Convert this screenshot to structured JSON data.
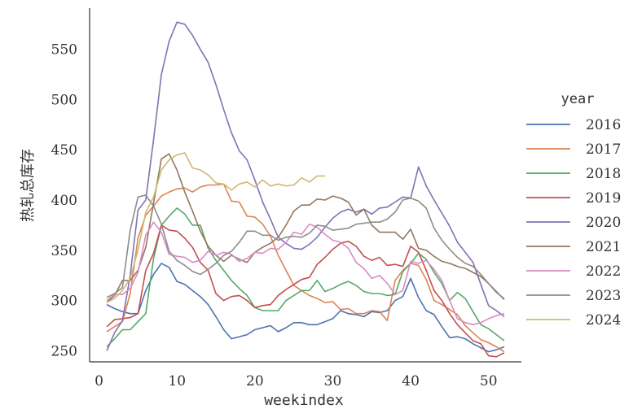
{
  "chart_data": {
    "type": "line",
    "title": "",
    "xlabel": "weekindex",
    "ylabel": "热轧总库存",
    "xlim": [
      -1,
      54
    ],
    "ylim": [
      239,
      591
    ],
    "xticks": [
      0,
      10,
      20,
      30,
      40,
      50
    ],
    "yticks": [
      250,
      300,
      350,
      400,
      450,
      500,
      550
    ],
    "grid": false,
    "legend_title": "year",
    "legend_position": "right",
    "series": [
      {
        "name": "2016",
        "color": "#4c72b0",
        "x": [
          1,
          2,
          3,
          4,
          5,
          6,
          7,
          8,
          9,
          10,
          11,
          12,
          13,
          14,
          15,
          16,
          17,
          18,
          19,
          20,
          21,
          22,
          23,
          24,
          25,
          26,
          27,
          28,
          29,
          30,
          31,
          32,
          33,
          34,
          35,
          36,
          37,
          38,
          39,
          40,
          41,
          42,
          43,
          44,
          45,
          46,
          47,
          48,
          49,
          50,
          51,
          52
        ],
        "y": [
          296,
          292,
          289,
          287,
          287,
          310,
          326,
          337,
          333,
          319,
          316,
          310,
          304,
          296,
          284,
          271,
          262,
          264,
          266,
          271,
          273,
          275,
          269,
          273,
          278,
          278,
          276,
          276,
          279,
          282,
          290,
          287,
          286,
          284,
          289,
          288,
          290,
          300,
          304,
          322,
          303,
          290,
          286,
          274,
          263,
          264,
          262,
          257,
          253,
          249,
          251,
          254
        ]
      },
      {
        "name": "2017",
        "color": "#dd8452",
        "x": [
          1,
          2,
          3,
          4,
          5,
          6,
          7,
          8,
          9,
          10,
          11,
          12,
          13,
          14,
          15,
          16,
          17,
          18,
          19,
          20,
          21,
          22,
          23,
          24,
          25,
          26,
          27,
          28,
          29,
          30,
          31,
          32,
          33,
          34,
          35,
          36,
          37,
          38,
          39,
          40,
          41,
          42,
          43,
          44,
          45,
          46,
          47,
          48,
          49,
          50,
          51,
          52
        ],
        "y": [
          269,
          274,
          279,
          307,
          362,
          385,
          394,
          404,
          408,
          411,
          412,
          408,
          413,
          415,
          415,
          416,
          399,
          398,
          384,
          383,
          376,
          364,
          345,
          330,
          315,
          310,
          305,
          302,
          298,
          299,
          291,
          292,
          287,
          287,
          290,
          289,
          280,
          320,
          330,
          337,
          335,
          321,
          300,
          296,
          291,
          286,
          275,
          268,
          261,
          258,
          254,
          249
        ]
      },
      {
        "name": "2018",
        "color": "#55a868",
        "x": [
          1,
          2,
          3,
          4,
          5,
          6,
          7,
          8,
          9,
          10,
          11,
          12,
          13,
          14,
          15,
          16,
          17,
          18,
          19,
          20,
          21,
          22,
          23,
          24,
          25,
          26,
          27,
          28,
          29,
          30,
          31,
          32,
          33,
          34,
          35,
          36,
          37,
          38,
          39,
          40,
          41,
          42,
          43,
          44,
          45,
          46,
          47,
          48,
          49,
          50,
          51,
          52
        ],
        "y": [
          254,
          262,
          271,
          271,
          279,
          287,
          342,
          375,
          384,
          392,
          386,
          375,
          375,
          352,
          340,
          330,
          320,
          312,
          305,
          293,
          290,
          290,
          290,
          300,
          305,
          310,
          310,
          320,
          309,
          312,
          316,
          319,
          315,
          309,
          307,
          307,
          305,
          306,
          329,
          337,
          347,
          341,
          328,
          317,
          300,
          308,
          302,
          289,
          276,
          272,
          266,
          260
        ]
      },
      {
        "name": "2019",
        "color": "#c44e52",
        "x": [
          1,
          2,
          3,
          4,
          5,
          6,
          7,
          8,
          9,
          10,
          11,
          12,
          13,
          14,
          15,
          16,
          17,
          18,
          19,
          20,
          21,
          22,
          23,
          24,
          25,
          26,
          27,
          28,
          29,
          30,
          31,
          32,
          33,
          34,
          35,
          36,
          37,
          38,
          39,
          40,
          41,
          42,
          43,
          44,
          45,
          46,
          47,
          48,
          49,
          50,
          51,
          52
        ],
        "y": [
          274,
          281,
          282,
          283,
          287,
          330,
          347,
          375,
          370,
          369,
          362,
          353,
          338,
          330,
          307,
          300,
          304,
          305,
          300,
          293,
          295,
          296,
          305,
          311,
          316,
          321,
          323,
          336,
          343,
          351,
          357,
          359,
          354,
          344,
          340,
          343,
          335,
          336,
          334,
          354,
          348,
          330,
          310,
          300,
          287,
          276,
          268,
          260,
          257,
          245,
          244,
          248
        ]
      },
      {
        "name": "2020",
        "color": "#8172b3",
        "x": [
          1,
          2,
          3,
          4,
          5,
          6,
          7,
          8,
          9,
          10,
          11,
          12,
          13,
          14,
          15,
          16,
          17,
          18,
          19,
          20,
          21,
          22,
          23,
          24,
          25,
          26,
          27,
          28,
          29,
          30,
          31,
          32,
          33,
          34,
          35,
          36,
          37,
          38,
          39,
          40,
          41,
          42,
          43,
          44,
          45,
          46,
          47,
          48,
          49,
          50,
          51,
          52
        ],
        "y": [
          250,
          268,
          280,
          325,
          390,
          400,
          460,
          525,
          558,
          577,
          575,
          564,
          550,
          537,
          515,
          490,
          467,
          449,
          440,
          420,
          398,
          381,
          363,
          357,
          352,
          351,
          356,
          363,
          373,
          382,
          388,
          391,
          388,
          391,
          386,
          392,
          393,
          398,
          403,
          402,
          433,
          414,
          400,
          387,
          374,
          358,
          348,
          338,
          316,
          295,
          290,
          284
        ]
      },
      {
        "name": "2021",
        "color": "#937860",
        "x": [
          1,
          2,
          3,
          4,
          5,
          6,
          7,
          8,
          9,
          10,
          11,
          12,
          13,
          14,
          15,
          16,
          17,
          18,
          19,
          20,
          21,
          22,
          23,
          24,
          25,
          26,
          27,
          28,
          29,
          30,
          31,
          32,
          33,
          34,
          35,
          36,
          37,
          38,
          39,
          40,
          41,
          42,
          43,
          44,
          45,
          46,
          47,
          48,
          49,
          50,
          51,
          52
        ],
        "y": [
          298,
          305,
          320,
          320,
          330,
          353,
          397,
          441,
          446,
          430,
          408,
          389,
          369,
          354,
          345,
          339,
          345,
          341,
          338,
          348,
          353,
          357,
          363,
          375,
          389,
          395,
          395,
          401,
          400,
          404,
          402,
          398,
          385,
          391,
          375,
          368,
          368,
          368,
          361,
          371,
          352,
          350,
          344,
          339,
          337,
          334,
          332,
          328,
          324,
          317,
          309,
          301
        ]
      },
      {
        "name": "2022",
        "color": "#da8bc3",
        "x": [
          1,
          2,
          3,
          4,
          5,
          6,
          7,
          8,
          9,
          10,
          11,
          12,
          13,
          14,
          15,
          16,
          17,
          18,
          19,
          20,
          21,
          22,
          23,
          24,
          25,
          26,
          27,
          28,
          29,
          30,
          31,
          32,
          33,
          34,
          35,
          36,
          37,
          38,
          39,
          40,
          41,
          42,
          43,
          44,
          45,
          46,
          47,
          48,
          49,
          50,
          51,
          52
        ],
        "y": [
          300,
          306,
          306,
          312,
          328,
          365,
          378,
          368,
          346,
          344,
          343,
          338,
          340,
          349,
          345,
          348,
          346,
          339,
          342,
          348,
          347,
          352,
          351,
          358,
          368,
          366,
          376,
          373,
          366,
          360,
          358,
          352,
          338,
          332,
          322,
          325,
          317,
          306,
          310,
          339,
          337,
          340,
          331,
          320,
          300,
          282,
          278,
          276,
          278,
          282,
          285,
          287
        ]
      },
      {
        "name": "2023",
        "color": "#8c8c8c",
        "x": [
          1,
          2,
          3,
          4,
          5,
          6,
          7,
          8,
          9,
          10,
          11,
          12,
          13,
          14,
          15,
          16,
          17,
          18,
          19,
          20,
          21,
          22,
          23,
          24,
          25,
          26,
          27,
          28,
          29,
          30,
          31,
          32,
          33,
          34,
          35,
          36,
          37,
          38,
          39,
          40,
          41,
          42,
          43,
          44,
          45,
          46,
          47,
          48,
          49,
          50,
          51,
          52
        ],
        "y": [
          303,
          307,
          313,
          370,
          403,
          405,
          394,
          376,
          349,
          340,
          335,
          329,
          326,
          331,
          337,
          345,
          349,
          358,
          369,
          369,
          365,
          365,
          360,
          363,
          364,
          363,
          367,
          375,
          374,
          370,
          371,
          372,
          376,
          377,
          378,
          378,
          381,
          388,
          400,
          402,
          399,
          392,
          372,
          360,
          351,
          343,
          337,
          334,
          326,
          317,
          308,
          302
        ]
      },
      {
        "name": "2024",
        "color": "#ccb974",
        "x": [
          1,
          2,
          3,
          4,
          5,
          6,
          7,
          8,
          9,
          10,
          11,
          12,
          13,
          14,
          15,
          16,
          17,
          18,
          19,
          20,
          21,
          22,
          23,
          24,
          25,
          26,
          27,
          28,
          29
        ],
        "y": [
          298,
          302,
          310,
          322,
          350,
          388,
          403,
          430,
          440,
          445,
          447,
          432,
          430,
          425,
          417,
          416,
          410,
          416,
          418,
          413,
          420,
          414,
          416,
          414,
          415,
          422,
          418,
          424,
          424
        ]
      }
    ]
  }
}
